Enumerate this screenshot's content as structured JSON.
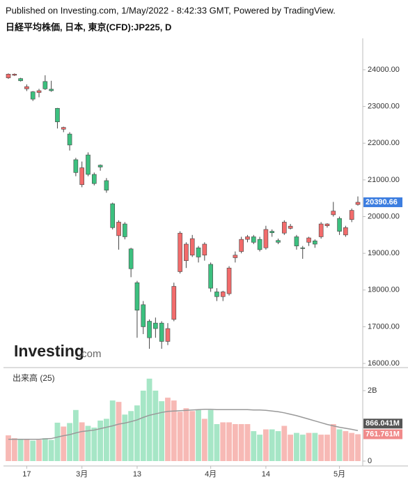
{
  "header": {
    "published": "Published on Investing.com, 1/May/2022 - 8:42:33 GMT, Powered by TradingView.",
    "symbol": "日経平均株価, 日本, 東京(CFD):JP225, D"
  },
  "watermark": {
    "brand": "Investing",
    "suffix": ".com"
  },
  "chart_data": [
    {
      "type": "candlestick",
      "categories": [
        null,
        null,
        null,
        "17",
        null,
        null,
        null,
        null,
        null,
        null,
        null,
        null,
        "3月",
        null,
        null,
        null,
        null,
        null,
        null,
        null,
        null,
        "13",
        null,
        null,
        null,
        null,
        null,
        null,
        null,
        null,
        null,
        null,
        null,
        "4月",
        null,
        null,
        null,
        null,
        null,
        null,
        null,
        null,
        "14",
        null,
        null,
        null,
        null,
        null,
        null,
        null,
        null,
        null,
        null,
        null,
        "5月",
        null,
        null,
        null
      ],
      "open": [
        23780,
        23850,
        23760,
        23480,
        23400,
        23380,
        23680,
        23470,
        22950,
        22380,
        22250,
        21550,
        20870,
        21680,
        21150,
        21400,
        20980,
        20350,
        19480,
        19800,
        19120,
        18200,
        17600,
        17150,
        17100,
        17100,
        16600,
        17200,
        18500,
        18800,
        18950,
        19150,
        18950,
        18700,
        17950,
        17820,
        17900,
        18880,
        19050,
        19380,
        19450,
        19380,
        19150,
        19600,
        19350,
        19550,
        19680,
        19450,
        19150,
        19300,
        19340,
        19450,
        19750,
        20050,
        19950,
        19500,
        19920,
        20330
      ],
      "high": [
        23900,
        23900,
        23780,
        23600,
        23420,
        23480,
        23850,
        23700,
        22960,
        22450,
        22300,
        21600,
        21500,
        21750,
        21200,
        21420,
        21050,
        20380,
        19900,
        19850,
        19150,
        18250,
        17700,
        17200,
        17250,
        17150,
        17100,
        18200,
        19600,
        19300,
        19500,
        19200,
        19300,
        18750,
        18050,
        17980,
        18650,
        19050,
        19450,
        19500,
        19500,
        19450,
        19750,
        19650,
        19400,
        19900,
        19800,
        19500,
        19200,
        19450,
        19380,
        19850,
        19820,
        20400,
        20000,
        19750,
        20220,
        20550
      ],
      "low": [
        23750,
        23830,
        23680,
        23420,
        23150,
        23250,
        23450,
        23400,
        22400,
        22300,
        21800,
        21100,
        20800,
        21100,
        20850,
        21250,
        20650,
        19650,
        19100,
        19380,
        18350,
        16700,
        16800,
        16400,
        16700,
        16400,
        16500,
        17150,
        18450,
        18600,
        18900,
        18750,
        18800,
        17950,
        17700,
        17700,
        17850,
        18750,
        19000,
        19300,
        19250,
        19050,
        19100,
        19450,
        19250,
        19500,
        19650,
        19100,
        18850,
        19200,
        19150,
        19400,
        19700,
        20000,
        19500,
        19450,
        19850,
        20300
      ],
      "close": [
        23880,
        23880,
        23700,
        23540,
        23200,
        23430,
        23480,
        23430,
        22580,
        22430,
        21950,
        21200,
        21330,
        21150,
        20900,
        21350,
        20720,
        19700,
        19850,
        19450,
        18580,
        17450,
        17000,
        16700,
        16950,
        16600,
        16950,
        18100,
        19550,
        19250,
        19400,
        18900,
        19250,
        18050,
        17820,
        17950,
        18600,
        18950,
        19380,
        19450,
        19300,
        19100,
        19650,
        19560,
        19300,
        19850,
        19740,
        19200,
        19130,
        19420,
        19250,
        19800,
        19800,
        20150,
        19600,
        19700,
        20170,
        20390.66
      ],
      "up_color": "#f26b6b",
      "down_color": "#3cc07f",
      "last_price_color": "#3d7ee0",
      "ylim": [
        15887,
        24855
      ],
      "yticks": [
        {
          "value": 16000,
          "label": "16000.00"
        },
        {
          "value": 17000,
          "label": "17000.00"
        },
        {
          "value": 18000,
          "label": "18000.00"
        },
        {
          "value": 19000,
          "label": "19000.00"
        },
        {
          "value": 20000,
          "label": "20000.00"
        },
        {
          "value": 21000,
          "label": "21000.00"
        },
        {
          "value": 22000,
          "label": "22000.00"
        },
        {
          "value": 23000,
          "label": "23000.00"
        },
        {
          "value": 24000,
          "label": "24000.00"
        }
      ]
    },
    {
      "type": "bar",
      "title": "出来高 (25)",
      "values": [
        730000000,
        650000000,
        620000000,
        620000000,
        580000000,
        600000000,
        650000000,
        600000000,
        1090000000,
        980000000,
        1080000000,
        1450000000,
        1100000000,
        1000000000,
        950000000,
        1150000000,
        1200000000,
        1720000000,
        1680000000,
        1320000000,
        1420000000,
        1580000000,
        2000000000,
        2340000000,
        2000000000,
        1700000000,
        1800000000,
        1720000000,
        1400000000,
        1500000000,
        1420000000,
        1450000000,
        1200000000,
        1450000000,
        1050000000,
        1100000000,
        1100000000,
        1050000000,
        1050000000,
        1050000000,
        850000000,
        750000000,
        900000000,
        900000000,
        850000000,
        1000000000,
        750000000,
        800000000,
        750000000,
        800000000,
        800000000,
        750000000,
        750000000,
        1050000000,
        900000000,
        850000000,
        800000000,
        761761000
      ],
      "value_labels": [
        null,
        null,
        null,
        null,
        null,
        null,
        null,
        null,
        null,
        null,
        null,
        null,
        null,
        null,
        null,
        null,
        null,
        null,
        null,
        null,
        null,
        null,
        null,
        null,
        null,
        null,
        null,
        null,
        null,
        null,
        null,
        null,
        null,
        null,
        null,
        null,
        null,
        null,
        null,
        null,
        null,
        null,
        null,
        null,
        null,
        null,
        null,
        null,
        null,
        null,
        null,
        null,
        null,
        null,
        null,
        null,
        null,
        "761.761M"
      ],
      "up_color": "#f7b9b5",
      "down_color": "#a6e6c6",
      "label_color": "#f08a8a",
      "series": [
        {
          "type": "line",
          "color": "#999999",
          "values": [
            620000000,
            620000000,
            620000000,
            620000000,
            620000000,
            620000000,
            630000000,
            640000000,
            680000000,
            720000000,
            750000000,
            800000000,
            840000000,
            860000000,
            880000000,
            920000000,
            960000000,
            1000000000,
            1050000000,
            1080000000,
            1120000000,
            1170000000,
            1240000000,
            1300000000,
            1340000000,
            1380000000,
            1410000000,
            1420000000,
            1430000000,
            1440000000,
            1450000000,
            1460000000,
            1470000000,
            1470000000,
            1460000000,
            1460000000,
            1460000000,
            1460000000,
            1460000000,
            1460000000,
            1450000000,
            1450000000,
            1440000000,
            1420000000,
            1400000000,
            1370000000,
            1330000000,
            1290000000,
            1240000000,
            1190000000,
            1140000000,
            1090000000,
            1040000000,
            1000000000,
            960000000,
            930000000,
            900000000,
            866041000
          ],
          "value_labels": [
            null,
            null,
            null,
            null,
            null,
            null,
            null,
            null,
            null,
            null,
            null,
            null,
            null,
            null,
            null,
            null,
            null,
            null,
            null,
            null,
            null,
            null,
            null,
            null,
            null,
            null,
            null,
            null,
            null,
            null,
            null,
            null,
            null,
            null,
            null,
            null,
            null,
            null,
            null,
            null,
            null,
            null,
            null,
            null,
            null,
            null,
            null,
            null,
            null,
            null,
            null,
            null,
            null,
            null,
            null,
            null,
            null,
            "866.041M"
          ]
        }
      ],
      "ylim": [
        0,
        2594000000
      ],
      "yticks": [
        {
          "value": 0,
          "label": "0"
        },
        {
          "value": 2000000000,
          "label": "2B"
        }
      ]
    }
  ]
}
